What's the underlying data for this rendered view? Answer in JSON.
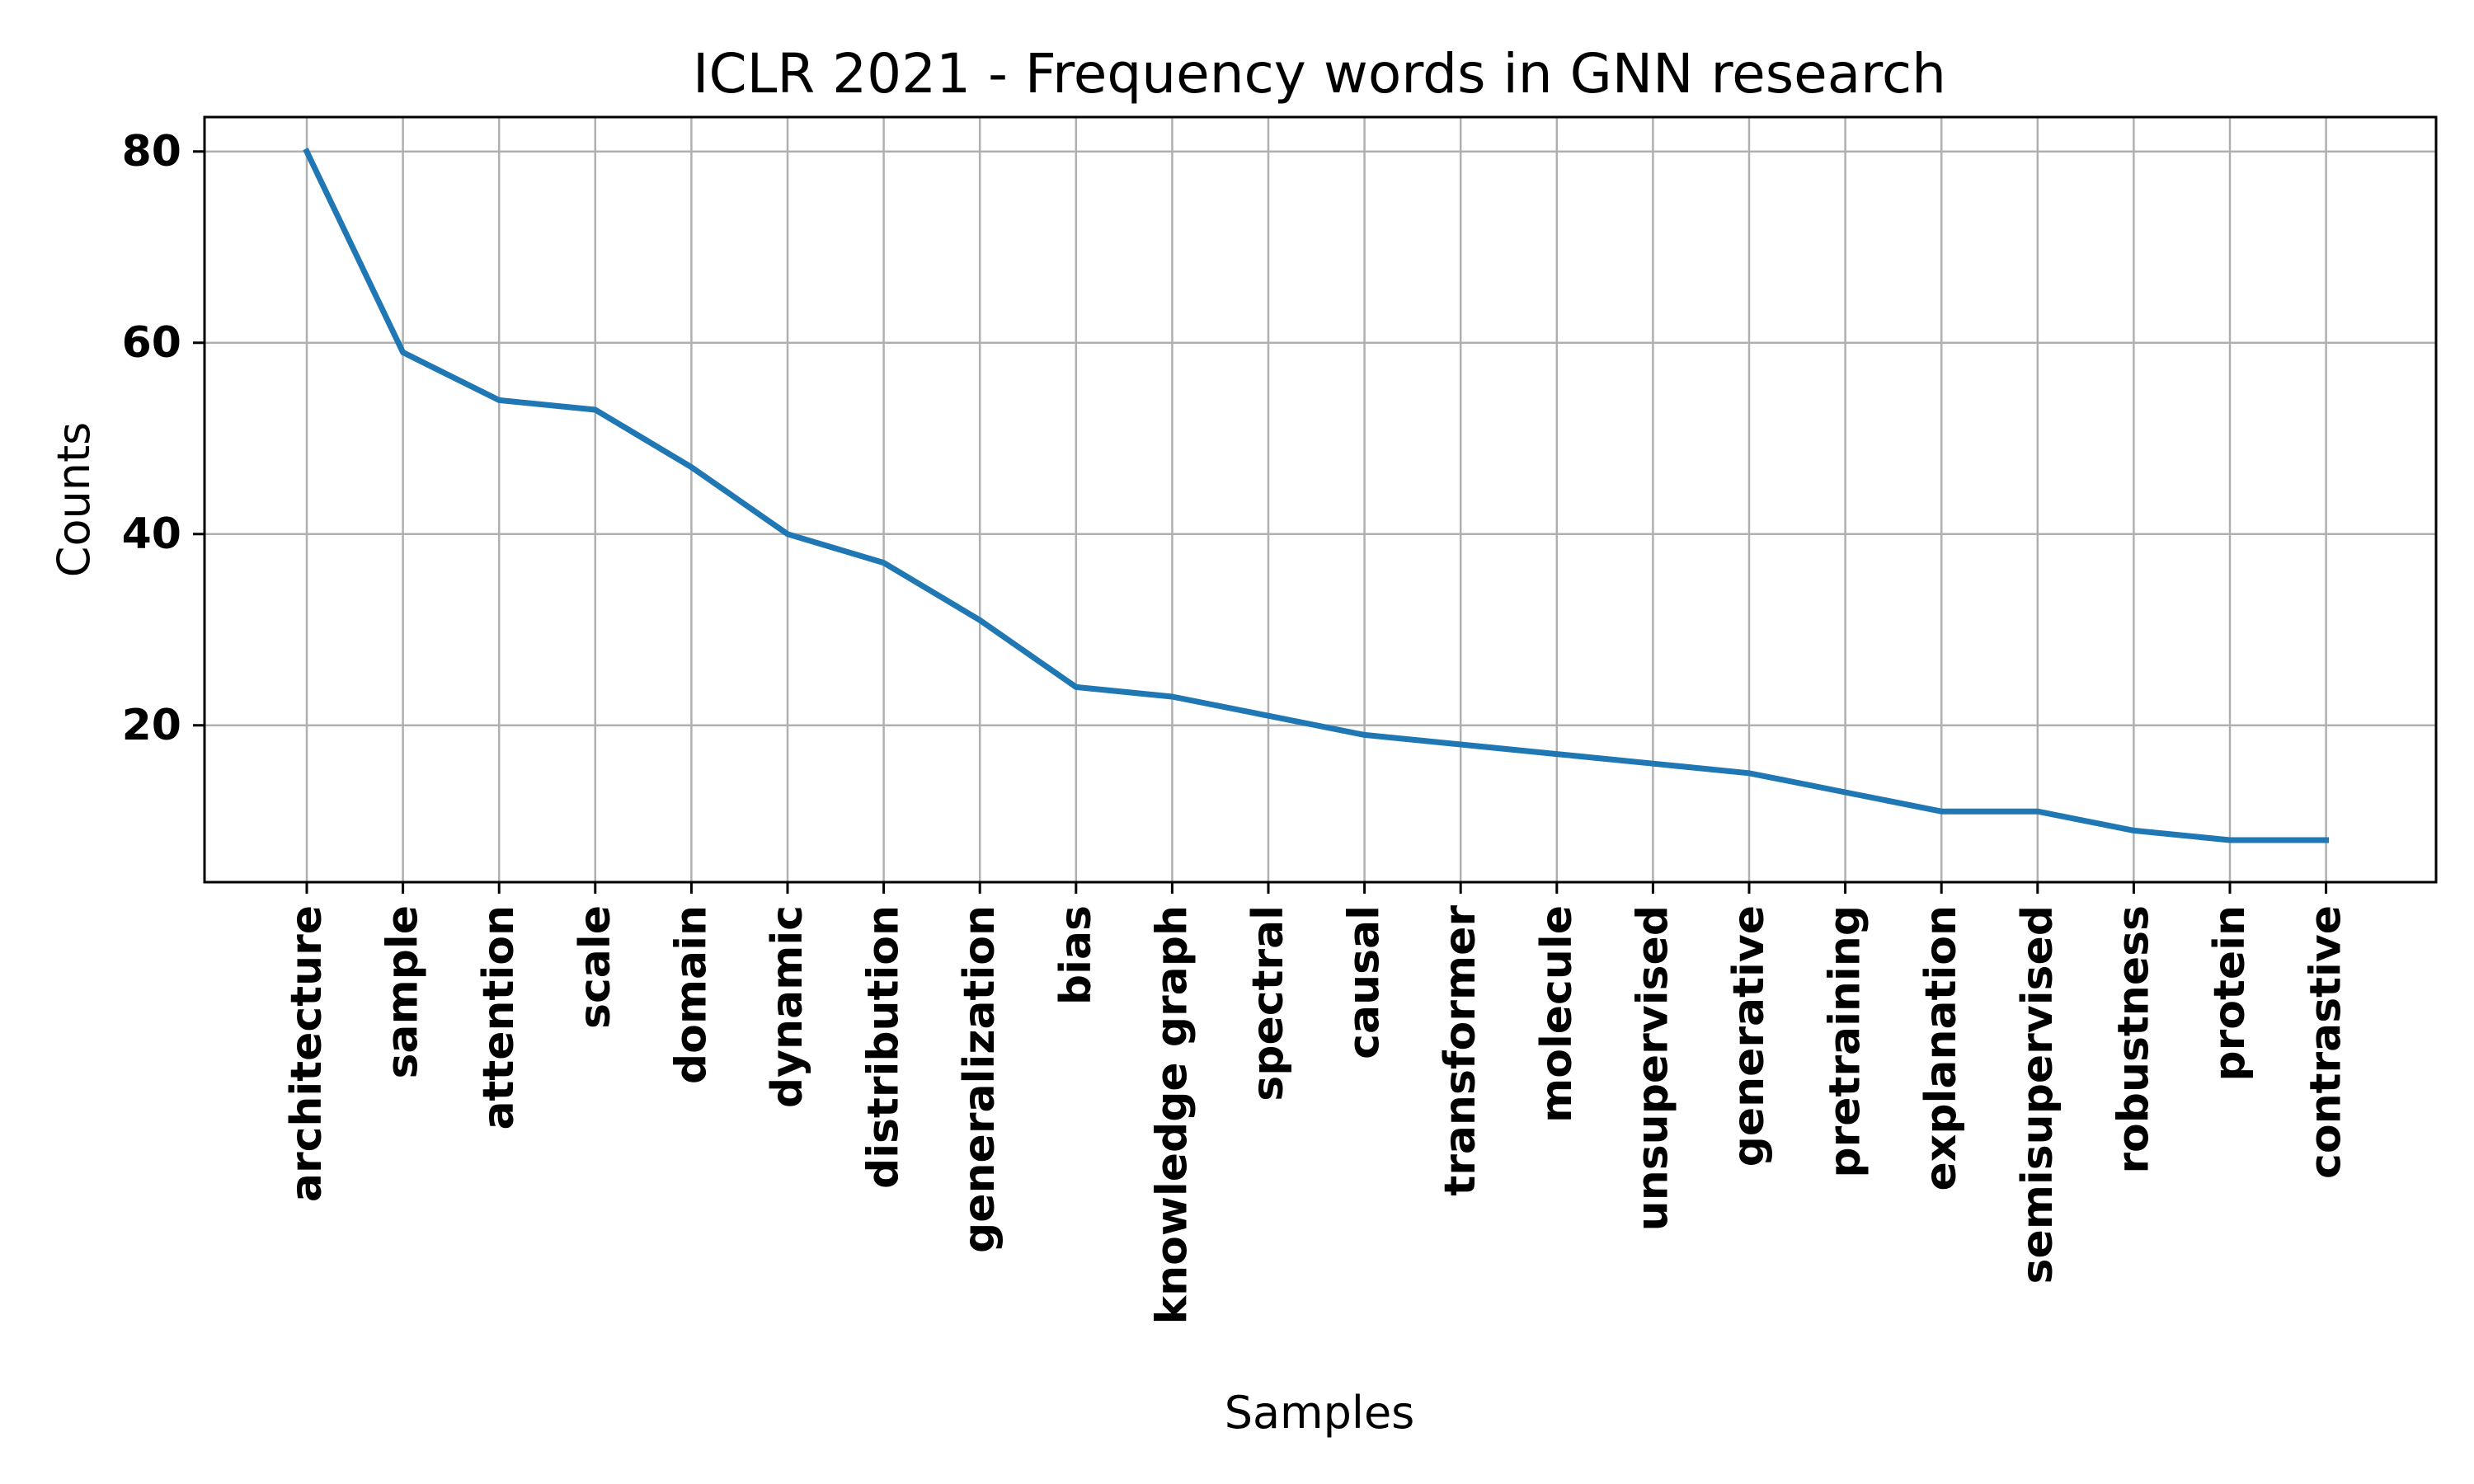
{
  "chart_data": {
    "type": "line",
    "title": "ICLR 2021 - Frequency words in GNN research",
    "xlabel": "Samples",
    "ylabel": "Counts",
    "categories": [
      "architecture",
      "sample",
      "attention",
      "scale",
      "domain",
      "dynamic",
      "distribution",
      "generalization",
      "bias",
      "knowledge graph",
      "spectral",
      "causal",
      "transformer",
      "molecule",
      "unsupervised",
      "generative",
      "pretraining",
      "explanation",
      "semisupervised",
      "robustness",
      "protein",
      "contrastive"
    ],
    "values": [
      80,
      59,
      54,
      53,
      47,
      40,
      37,
      31,
      24,
      23,
      21,
      19,
      18,
      17,
      16,
      15,
      13,
      11,
      11,
      9,
      8,
      8
    ],
    "yticks": [
      20,
      40,
      60,
      80
    ],
    "ylim": [
      3.6,
      83.6
    ],
    "grid": true,
    "line_color": "#1f77b4"
  }
}
